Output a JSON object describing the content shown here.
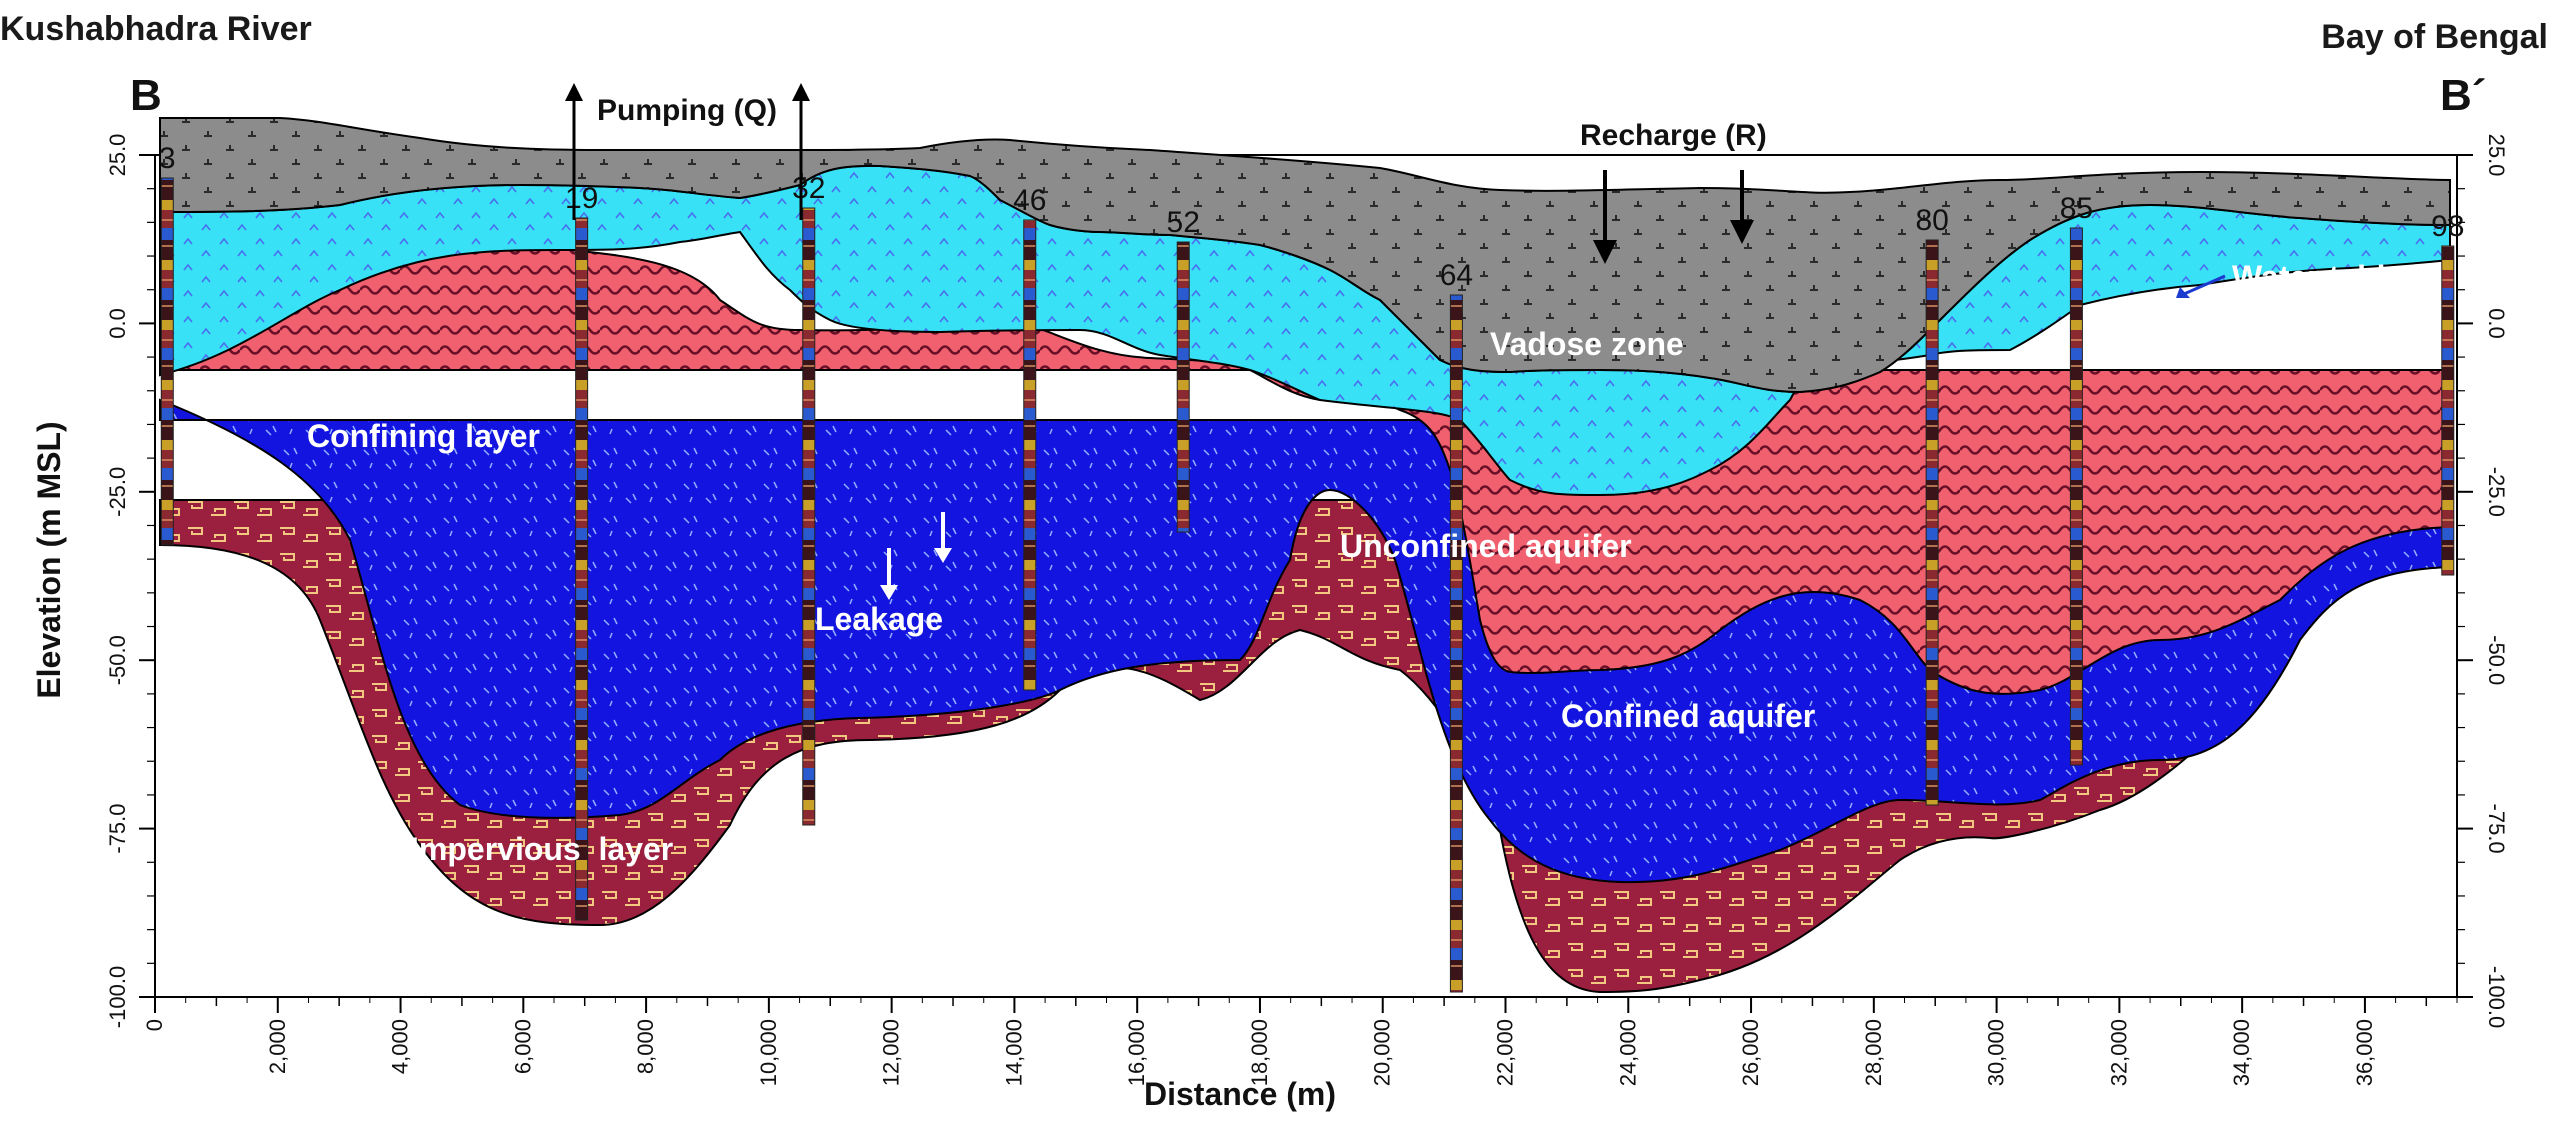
{
  "figure": {
    "left_location": "Kushabhadra River",
    "right_location": "Bay of Bengal",
    "left_section_letter": "B",
    "right_section_letter": "B´"
  },
  "axes": {
    "x_label": "Distance (m)",
    "y_label": "Elevation (m MSL)",
    "x_range": [
      0,
      37500
    ],
    "y_range": [
      -100,
      25
    ],
    "x_ticks": [
      "0",
      "2,000",
      "4,000",
      "6,000",
      "8,000",
      "10,000",
      "12,000",
      "14,000",
      "16,000",
      "18,000",
      "20,000",
      "22,000",
      "24,000",
      "26,000",
      "28,000",
      "30,000",
      "32,000",
      "34,000",
      "36,000"
    ],
    "y_ticks": [
      "25.0",
      "0.0",
      "-25.0",
      "-50.0",
      "-75.0",
      "-100.0"
    ]
  },
  "wells": [
    {
      "label": "3",
      "x": 200
    },
    {
      "label": "19",
      "x": 6950
    },
    {
      "label": "32",
      "x": 10650
    },
    {
      "label": "46",
      "x": 14250
    },
    {
      "label": "52",
      "x": 16750
    },
    {
      "label": "64",
      "x": 21200
    },
    {
      "label": "80",
      "x": 28950
    },
    {
      "label": "85",
      "x": 31300
    },
    {
      "label": "98",
      "x": 37350
    }
  ],
  "zones": {
    "vadose": "Vadose zone",
    "unconfined": "Unconfined aquifer",
    "confining": "Confining layer",
    "confined": "Confined aquifer",
    "impervious": "Impervious  layer",
    "water_table": "Water table"
  },
  "annotations": {
    "pumping": "Pumping (Q)",
    "recharge": "Recharge (R)",
    "leakage": "Leakage"
  },
  "colors": {
    "vadose": "#808080",
    "unconfined": "#38e1f5",
    "confining": "#f0606e",
    "confined": "#1414e0",
    "impervious": "#9b2040"
  }
}
